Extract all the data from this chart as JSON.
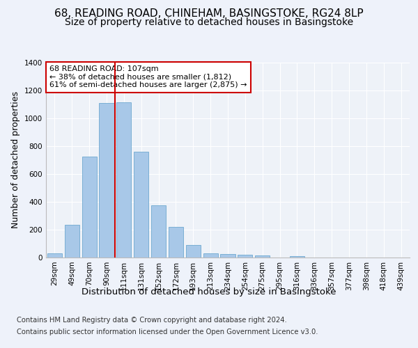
{
  "title": "68, READING ROAD, CHINEHAM, BASINGSTOKE, RG24 8LP",
  "subtitle": "Size of property relative to detached houses in Basingstoke",
  "xlabel": "Distribution of detached houses by size in Basingstoke",
  "ylabel": "Number of detached properties",
  "categories": [
    "29sqm",
    "49sqm",
    "70sqm",
    "90sqm",
    "111sqm",
    "131sqm",
    "152sqm",
    "172sqm",
    "193sqm",
    "213sqm",
    "234sqm",
    "254sqm",
    "275sqm",
    "295sqm",
    "316sqm",
    "336sqm",
    "357sqm",
    "377sqm",
    "398sqm",
    "418sqm",
    "439sqm"
  ],
  "values": [
    30,
    235,
    725,
    1110,
    1115,
    760,
    375,
    220,
    90,
    30,
    25,
    22,
    15,
    0,
    10,
    0,
    0,
    0,
    0,
    0,
    0
  ],
  "bar_color": "#a8c8e8",
  "bar_edge_color": "#5a9ec9",
  "vline_pos": 3.5,
  "vline_color": "#cc0000",
  "annotation_text": "68 READING ROAD: 107sqm\n← 38% of detached houses are smaller (1,812)\n61% of semi-detached houses are larger (2,875) →",
  "annotation_box_color": "#ffffff",
  "annotation_box_edge_color": "#cc0000",
  "ylim": [
    0,
    1400
  ],
  "yticks": [
    0,
    200,
    400,
    600,
    800,
    1000,
    1200,
    1400
  ],
  "footer_line1": "Contains HM Land Registry data © Crown copyright and database right 2024.",
  "footer_line2": "Contains public sector information licensed under the Open Government Licence v3.0.",
  "background_color": "#eef2fa",
  "plot_bg_color": "#eef2f8",
  "grid_color": "#ffffff",
  "title_fontsize": 11,
  "subtitle_fontsize": 10,
  "axis_label_fontsize": 9,
  "tick_fontsize": 7.5,
  "annotation_fontsize": 8,
  "footer_fontsize": 7.2
}
